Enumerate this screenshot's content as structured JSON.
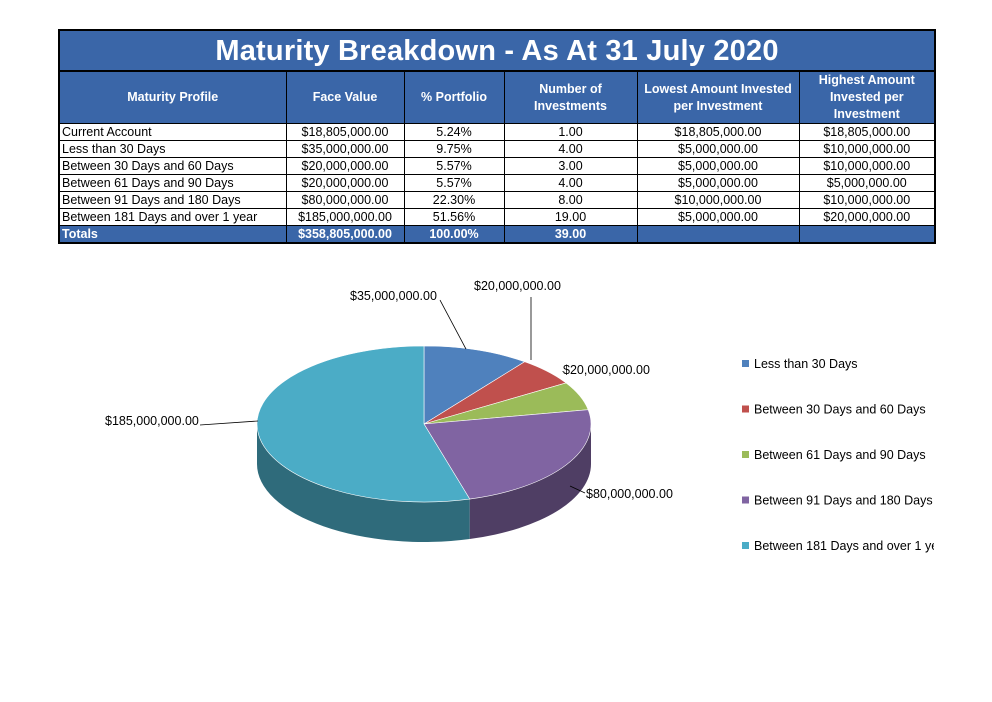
{
  "title": "Maturity Breakdown - As At 31 July 2020",
  "columns": [
    "Maturity Profile",
    "Face Value",
    "% Portfolio",
    "Number of Investments",
    "Lowest Amount Invested per Investment",
    "Highest Amount Invested per Investment"
  ],
  "rows": [
    [
      "Current Account",
      "$18,805,000.00",
      "5.24%",
      "1.00",
      "$18,805,000.00",
      "$18,805,000.00"
    ],
    [
      "Less than 30 Days",
      "$35,000,000.00",
      "9.75%",
      "4.00",
      "$5,000,000.00",
      "$10,000,000.00"
    ],
    [
      "Between 30 Days and 60 Days",
      "$20,000,000.00",
      "5.57%",
      "3.00",
      "$5,000,000.00",
      "$10,000,000.00"
    ],
    [
      "Between 61 Days and 90 Days",
      "$20,000,000.00",
      "5.57%",
      "4.00",
      "$5,000,000.00",
      "$5,000,000.00"
    ],
    [
      "Between 91 Days and 180 Days",
      "$80,000,000.00",
      "22.30%",
      "8.00",
      "$10,000,000.00",
      "$10,000,000.00"
    ],
    [
      "Between 181 Days and over 1 year",
      "$185,000,000.00",
      "51.56%",
      "19.00",
      "$5,000,000.00",
      "$20,000,000.00"
    ]
  ],
  "totals": [
    "Totals",
    "$358,805,000.00",
    "100.00%",
    "39.00",
    "",
    ""
  ],
  "chart_data": {
    "type": "pie",
    "style": "3d",
    "legend_position": "right",
    "slices": [
      {
        "name": "Less than 30 Days",
        "value": 35000000,
        "label": "$35,000,000.00",
        "color": "#4f81bd"
      },
      {
        "name": "Between 30 Days and 60 Days",
        "value": 20000000,
        "label": "$20,000,000.00",
        "color": "#c0504d"
      },
      {
        "name": "Between 61 Days and 90 Days",
        "value": 20000000,
        "label": "$20,000,000.00",
        "color": "#9bbb59"
      },
      {
        "name": "Between 91 Days and 180 Days",
        "value": 80000000,
        "label": "$80,000,000.00",
        "color": "#8064a2"
      },
      {
        "name": "Between 181 Days and over 1 year",
        "value": 185000000,
        "label": "$185,000,000.00",
        "color": "#4bacc6"
      }
    ]
  }
}
